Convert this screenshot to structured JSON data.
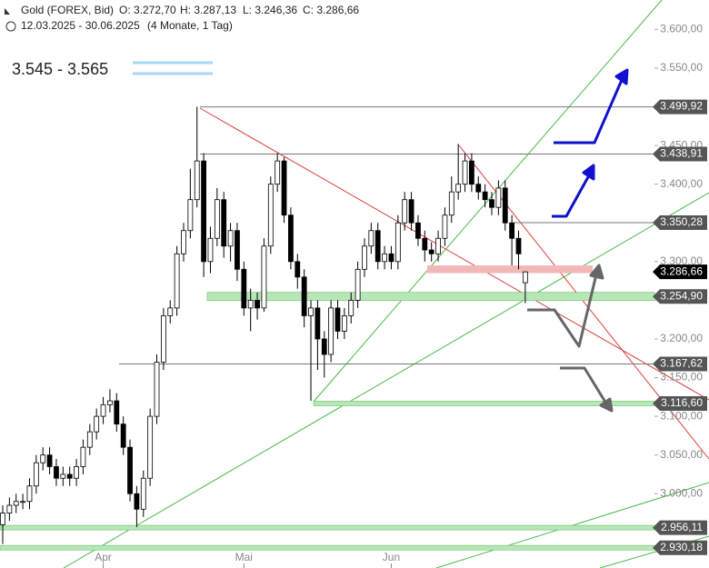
{
  "chart_data": {
    "type": "candlestick",
    "title": "Gold (FOREX, Bid)",
    "ohlc_labels": [
      "O: 3.272,70",
      "H: 3.287,13",
      "L: 3.246,36",
      "C: 3.286,66"
    ],
    "subtitle": "12.03.2025 - 30.06.2025",
    "period": "(4 Monate, 1 Tag)",
    "annotation": "3.545 - 3.565",
    "categories": [
      null,
      null,
      null,
      null,
      null,
      null,
      null,
      null,
      null,
      null,
      null,
      null,
      null,
      null,
      null,
      "Apr",
      null,
      null,
      null,
      null,
      null,
      null,
      null,
      null,
      null,
      null,
      null,
      null,
      null,
      null,
      null,
      null,
      null,
      null,
      null,
      null,
      "Mai",
      null,
      null,
      null,
      null,
      null,
      null,
      null,
      null,
      null,
      null,
      null,
      null,
      null,
      null,
      null,
      null,
      null,
      null,
      null,
      null,
      null,
      "Jun",
      null,
      null,
      null,
      null,
      null,
      null,
      null,
      null,
      null,
      null,
      null,
      null,
      null,
      null,
      null,
      null,
      null,
      null,
      null,
      null
    ],
    "open": [
      2960,
      2975,
      2985,
      2990,
      2990,
      3010,
      3040,
      3050,
      3035,
      3020,
      3025,
      3020,
      3035,
      3060,
      3080,
      3100,
      3115,
      3120,
      3090,
      3060,
      3000,
      2980,
      3020,
      3100,
      3170,
      3230,
      3240,
      3310,
      3340,
      3380,
      3430,
      3300,
      3330,
      3380,
      3320,
      3340,
      3290,
      3240,
      3250,
      3240,
      3320,
      3400,
      3430,
      3360,
      3300,
      3280,
      3230,
      3240,
      3200,
      3180,
      3240,
      3210,
      3230,
      3250,
      3290,
      3320,
      3340,
      3300,
      3310,
      3300,
      3350,
      3380,
      3350,
      3330,
      3315,
      3310,
      3330,
      3360,
      3390,
      3400,
      3430,
      3400,
      3390,
      3380,
      3370,
      3395,
      3350,
      3330,
      3272.7
    ],
    "high": [
      2985,
      2995,
      3000,
      3000,
      3020,
      3050,
      3060,
      3060,
      3045,
      3035,
      3035,
      3045,
      3070,
      3090,
      3110,
      3125,
      3135,
      3130,
      3100,
      3070,
      3010,
      3030,
      3110,
      3180,
      3240,
      3250,
      3320,
      3350,
      3420,
      3500,
      3440,
      3345,
      3395,
      3390,
      3350,
      3350,
      3300,
      3265,
      3260,
      3330,
      3410,
      3440,
      3435,
      3370,
      3310,
      3290,
      3250,
      3250,
      3210,
      3250,
      3250,
      3240,
      3260,
      3300,
      3330,
      3350,
      3350,
      3320,
      3320,
      3360,
      3390,
      3390,
      3360,
      3340,
      3325,
      3340,
      3370,
      3410,
      3452,
      3440,
      3440,
      3410,
      3400,
      3390,
      3405,
      3405,
      3360,
      3340,
      3287.13
    ],
    "low": [
      2935,
      2965,
      2975,
      2980,
      2980,
      3000,
      3030,
      3025,
      3010,
      3010,
      3010,
      3010,
      3025,
      3050,
      3070,
      3090,
      3105,
      3080,
      3050,
      2990,
      2957,
      2970,
      3010,
      3090,
      3160,
      3220,
      3230,
      3300,
      3330,
      3370,
      3280,
      3285,
      3320,
      3305,
      3300,
      3275,
      3230,
      3210,
      3225,
      3235,
      3310,
      3390,
      3350,
      3290,
      3265,
      3215,
      3120,
      3160,
      3150,
      3170,
      3200,
      3200,
      3220,
      3240,
      3280,
      3310,
      3290,
      3290,
      3290,
      3290,
      3340,
      3340,
      3320,
      3300,
      3300,
      3300,
      3320,
      3350,
      3380,
      3390,
      3390,
      3380,
      3370,
      3360,
      3360,
      3340,
      3295,
      3290,
      3246.36
    ],
    "close": [
      2975,
      2985,
      2990,
      2990,
      3010,
      3040,
      3050,
      3035,
      3020,
      3025,
      3020,
      3035,
      3060,
      3080,
      3100,
      3115,
      3120,
      3090,
      3060,
      3000,
      2980,
      3020,
      3100,
      3170,
      3230,
      3240,
      3310,
      3340,
      3380,
      3430,
      3300,
      3330,
      3380,
      3320,
      3340,
      3290,
      3240,
      3250,
      3240,
      3320,
      3400,
      3430,
      3360,
      3300,
      3280,
      3230,
      3240,
      3200,
      3180,
      3240,
      3210,
      3230,
      3250,
      3290,
      3320,
      3340,
      3300,
      3310,
      3300,
      3350,
      3380,
      3350,
      3330,
      3315,
      3310,
      3330,
      3360,
      3390,
      3400,
      3430,
      3400,
      3390,
      3380,
      3370,
      3395,
      3350,
      3330,
      3310,
      3286.66
    ],
    "ylim": [
      2904,
      3638
    ],
    "yticks": [
      {
        "value": 3000,
        "label": "3.000,00"
      },
      {
        "value": 3050,
        "label": "3.050,00"
      },
      {
        "value": 3100,
        "label": "3.100,00"
      },
      {
        "value": 3150,
        "label": "3.150,00"
      },
      {
        "value": 3200,
        "label": "3.200,00"
      },
      {
        "value": 3250,
        "label": "3.250,00"
      },
      {
        "value": 3300,
        "label": "3.300,00"
      },
      {
        "value": 3350,
        "label": "3.350,00"
      },
      {
        "value": 3400,
        "label": "3.400,00"
      },
      {
        "value": 3450,
        "label": "3.450,00"
      },
      {
        "value": 3500,
        "label": "3.500,00"
      },
      {
        "value": 3550,
        "label": "3.550,00"
      },
      {
        "value": 3600,
        "label": "3.600,00"
      }
    ],
    "levels": [
      {
        "value": 3499.92,
        "label": "3.499,92",
        "color": "#777777"
      },
      {
        "value": 3438.91,
        "label": "3.438,91",
        "color": "#777777"
      },
      {
        "value": 3350.28,
        "label": "3.350,28",
        "color": "#777777"
      },
      {
        "value": 3286.66,
        "label": "3.286,66",
        "color": "#000000"
      },
      {
        "value": 3254.9,
        "label": "3.254,90",
        "color": "#7ccf7c"
      },
      {
        "value": 3167.62,
        "label": "3.167,62",
        "color": "#777777"
      },
      {
        "value": 3116.6,
        "label": "3.116,60",
        "color": "#7ccf7c"
      },
      {
        "value": 2956.11,
        "label": "2.956,11",
        "color": "#7ccf7c"
      },
      {
        "value": 2930.18,
        "label": "2.930,18",
        "color": "#7ccf7c"
      }
    ],
    "zone": {
      "from": 3285,
      "to": 3295,
      "color": "#f2b8b8"
    }
  }
}
